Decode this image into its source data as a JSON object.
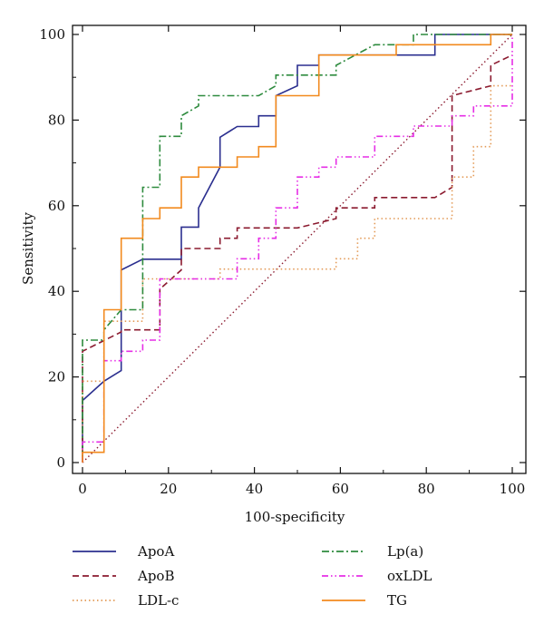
{
  "chart_data": {
    "type": "line",
    "title": "",
    "xlabel": "100-specificity",
    "ylabel": "Sensitivity",
    "xlim": [
      0,
      100
    ],
    "ylim": [
      0,
      100
    ],
    "xticks": [
      "0",
      "20",
      "40",
      "60",
      "80",
      "100"
    ],
    "yticks": [
      "0",
      "20",
      "40",
      "60",
      "80",
      "100"
    ],
    "grid": false,
    "legend_placement": "bottom",
    "reference_line": {
      "x": [
        0,
        100
      ],
      "y": [
        0,
        100
      ],
      "color": "#8b1a2f",
      "style": "dotted"
    },
    "series": [
      {
        "name": "ApoA",
        "color": "#2b2f8f",
        "style": "solid",
        "x": [
          0,
          0,
          5,
          9,
          9,
          14,
          23,
          23,
          27,
          27,
          32,
          32,
          36,
          41,
          41,
          45,
          45,
          50,
          50,
          55,
          55,
          82,
          82,
          100,
          100
        ],
        "y": [
          0,
          14.5,
          19,
          21.5,
          45,
          47.5,
          47.5,
          55,
          55,
          59.5,
          69,
          76,
          78.5,
          78.5,
          81,
          81,
          85.7,
          88,
          92.8,
          92.8,
          95.2,
          95.2,
          100,
          100,
          100
        ]
      },
      {
        "name": "ApoB",
        "color": "#8b1a2f",
        "style": "dashed",
        "x": [
          0,
          0,
          9,
          9,
          18,
          18,
          23,
          23,
          32,
          32,
          36,
          36,
          50,
          59,
          59,
          68,
          68,
          82,
          86,
          86,
          95,
          95,
          100
        ],
        "y": [
          0,
          26,
          30.5,
          31,
          31,
          40.5,
          45,
          50,
          50,
          52.4,
          52.4,
          54.8,
          54.8,
          57,
          59.5,
          59.5,
          61.9,
          61.9,
          64.3,
          85.7,
          88,
          92.8,
          95.2
        ]
      },
      {
        "name": "LDL-c",
        "color": "#e39a56",
        "style": "dotted",
        "x": [
          0,
          0,
          5,
          5,
          14,
          14,
          32,
          32,
          59,
          59,
          64,
          64,
          68,
          68,
          86,
          86,
          91,
          91,
          95,
          95,
          100
        ],
        "y": [
          0,
          19,
          19,
          33,
          33,
          42.9,
          42.9,
          45.2,
          45.2,
          47.6,
          47.6,
          52.4,
          52.4,
          57,
          57,
          66.7,
          66.7,
          73.8,
          73.8,
          88,
          88
        ]
      },
      {
        "name": "Lp(a)",
        "color": "#2e8b3e",
        "style": "dashdot",
        "x": [
          0,
          0,
          5,
          5,
          9,
          14,
          14,
          18,
          18,
          23,
          23,
          27,
          27,
          41,
          45,
          45,
          59,
          59,
          68,
          77,
          77,
          100
        ],
        "y": [
          0,
          28.6,
          28.6,
          31,
          35.7,
          35.7,
          64.3,
          64.3,
          76.2,
          76.2,
          81,
          83.3,
          85.7,
          85.7,
          88,
          90.5,
          90.5,
          92.8,
          97.6,
          97.6,
          100,
          100
        ]
      },
      {
        "name": "oxLDL",
        "color": "#e62ee6",
        "style": "dashdotdot",
        "x": [
          0,
          0,
          5,
          5,
          9,
          9,
          14,
          14,
          18,
          18,
          36,
          36,
          41,
          41,
          45,
          45,
          50,
          50,
          55,
          55,
          59,
          59,
          68,
          68,
          77,
          77,
          86,
          86,
          91,
          91,
          95,
          95,
          100,
          100
        ],
        "y": [
          0,
          4.8,
          4.8,
          23.8,
          23.8,
          26,
          26,
          28.6,
          28.6,
          42.9,
          42.9,
          47.6,
          47.6,
          52.4,
          52.4,
          59.5,
          59.5,
          66.7,
          66.7,
          69,
          69,
          71.4,
          71.4,
          76.2,
          76.2,
          78.6,
          78.6,
          81,
          81,
          83.3,
          83.3,
          83.3,
          83.3,
          100
        ]
      },
      {
        "name": "TG",
        "color": "#f28a1e",
        "style": "solid",
        "x": [
          0,
          0,
          5,
          5,
          9,
          9,
          14,
          14,
          18,
          18,
          23,
          23,
          27,
          27,
          36,
          36,
          41,
          41,
          45,
          45,
          55,
          55,
          73,
          73,
          95,
          95,
          100
        ],
        "y": [
          0,
          2.4,
          2.4,
          35.7,
          35.7,
          52.4,
          52.4,
          57,
          57,
          59.5,
          59.5,
          66.7,
          66.7,
          69,
          69,
          71.4,
          71.4,
          73.8,
          73.8,
          85.7,
          85.7,
          95.2,
          95.2,
          97.6,
          97.6,
          100,
          100
        ]
      }
    ]
  }
}
